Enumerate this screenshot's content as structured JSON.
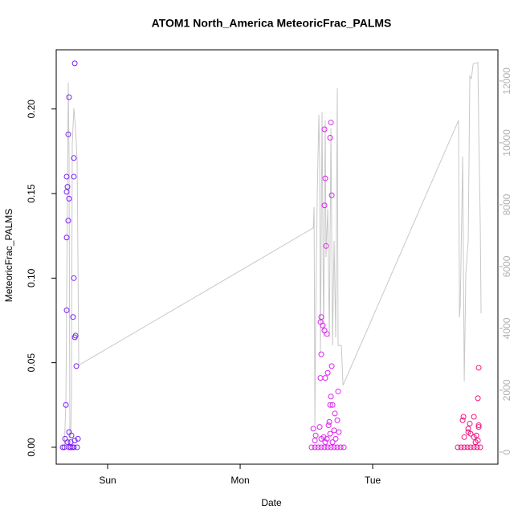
{
  "chart_data": {
    "type": "scatter",
    "title": "ATOM1 North_America MeteoricFrac_PALMS",
    "x_label": "Date",
    "y_label": "MeteoricFrac_PALMS",
    "xlim": [
      -0.388,
      2.945
    ],
    "xticks": [
      {
        "value": 0,
        "label": "Sun"
      },
      {
        "value": 1,
        "label": "Mon"
      },
      {
        "value": 2,
        "label": "Tue"
      }
    ],
    "ylim": [
      -0.01,
      0.235
    ],
    "yticks": [
      {
        "value": 0,
        "label": "0.00"
      },
      {
        "value": 0.05,
        "label": "0.05"
      },
      {
        "value": 0.1,
        "label": "0.10"
      },
      {
        "value": 0.15,
        "label": "0.15"
      },
      {
        "value": 0.2,
        "label": "0.20"
      }
    ],
    "y2lim": [
      -390,
      13010
    ],
    "y2ticks": [
      0,
      2000,
      4000,
      6000,
      8000,
      10000,
      12000
    ],
    "y2_color": "#b0b0b0",
    "series": [
      {
        "color": "#7b22f2",
        "x": [
          -0.248,
          -0.291,
          -0.297,
          -0.255,
          -0.309,
          -0.255,
          -0.303,
          -0.309,
          -0.291,
          -0.297,
          -0.309,
          -0.255,
          -0.309,
          -0.261,
          -0.242,
          -0.248,
          -0.236,
          -0.315,
          -0.291,
          -0.273,
          -0.321,
          -0.224,
          -0.303,
          -0.248,
          -0.279,
          -0.339,
          -0.327,
          -0.291,
          -0.279,
          -0.267,
          -0.255,
          -0.23
        ],
        "values": [
          0.227,
          0.207,
          0.185,
          0.171,
          0.16,
          0.16,
          0.154,
          0.151,
          0.147,
          0.134,
          0.124,
          0.1,
          0.081,
          0.077,
          0.066,
          0.065,
          0.048,
          0.025,
          0.009,
          0.007,
          0.005,
          0.005,
          0.003,
          0.004,
          0.003,
          0,
          0,
          0,
          0,
          0,
          0,
          0
        ]
      },
      {
        "color": "#dd22ee",
        "x": [
          1.685,
          1.679,
          1.636,
          1.642,
          1.691,
          1.636,
          1.648,
          1.612,
          1.606,
          1.624,
          1.636,
          1.655,
          1.612,
          1.691,
          1.606,
          1.642,
          1.661,
          1.739,
          1.685,
          1.679,
          1.697,
          1.715,
          1.733,
          1.673,
          1.667,
          1.6,
          1.552,
          1.709,
          1.745,
          1.57,
          1.63,
          1.679,
          1.612,
          1.655,
          1.721,
          1.564,
          1.642,
          1.697,
          1.539,
          1.564,
          1.588,
          1.612,
          1.636,
          1.661,
          1.685,
          1.709,
          1.733,
          1.758,
          1.782
        ],
        "values": [
          0.192,
          0.183,
          0.188,
          0.159,
          0.149,
          0.143,
          0.119,
          0.077,
          0.074,
          0.072,
          0.069,
          0.067,
          0.055,
          0.048,
          0.041,
          0.041,
          0.044,
          0.033,
          0.03,
          0.025,
          0.025,
          0.02,
          0.016,
          0.015,
          0.013,
          0.012,
          0.011,
          0.01,
          0.009,
          0.007,
          0.006,
          0.008,
          0.005,
          0.005,
          0.005,
          0.004,
          0.003,
          0.003,
          0,
          0,
          0,
          0,
          0,
          0,
          0,
          0,
          0,
          0,
          0
        ]
      },
      {
        "color": "#f0147f",
        "x": [
          2.8,
          2.794,
          2.764,
          2.685,
          2.679,
          2.733,
          2.8,
          2.8,
          2.721,
          2.721,
          2.782,
          2.691,
          2.764,
          2.739,
          2.794,
          2.776,
          2.642,
          2.667,
          2.691,
          2.715,
          2.739,
          2.764,
          2.788,
          2.812
        ],
        "values": [
          0.047,
          0.029,
          0.018,
          0.018,
          0.016,
          0.014,
          0.013,
          0.012,
          0.011,
          0.009,
          0.007,
          0.006,
          0.006,
          0.008,
          0.004,
          0.003,
          0,
          0,
          0,
          0,
          0,
          0,
          0,
          0
        ]
      },
      {
        "type": "line",
        "axis": "y2",
        "color": "#c8c8c8",
        "x": [
          -0.327,
          -0.315,
          -0.297,
          -0.291,
          -0.285,
          -0.279,
          -0.273,
          -0.267,
          -0.255,
          -0.242,
          -0.23,
          -0.218,
          1.552,
          1.558,
          1.564,
          1.57,
          1.582,
          1.594,
          1.6,
          1.606,
          1.618,
          1.63,
          1.642,
          1.648,
          1.661,
          1.673,
          1.685,
          1.697,
          1.709,
          1.721,
          1.733,
          1.739,
          1.752,
          1.764,
          1.776,
          2.648,
          2.655,
          2.661,
          2.679,
          2.691,
          2.703,
          2.721,
          2.733,
          2.745,
          2.758,
          2.794,
          2.8,
          2.812,
          2.818
        ],
        "values": [
          80,
          1640,
          11950,
          9430,
          600,
          470,
          1640,
          9950,
          11120,
          10470,
          9430,
          2810,
          7250,
          7920,
          860,
          4230,
          8390,
          10910,
          9430,
          3190,
          10990,
          3710,
          10730,
          6310,
          7870,
          3710,
          10470,
          3450,
          6830,
          3710,
          11770,
          3450,
          3450,
          3450,
          2160,
          10730,
          4360,
          4750,
          9560,
          2290,
          5790,
          6830,
          12160,
          12080,
          12550,
          12600,
          10470,
          7350,
          4490
        ]
      }
    ]
  }
}
